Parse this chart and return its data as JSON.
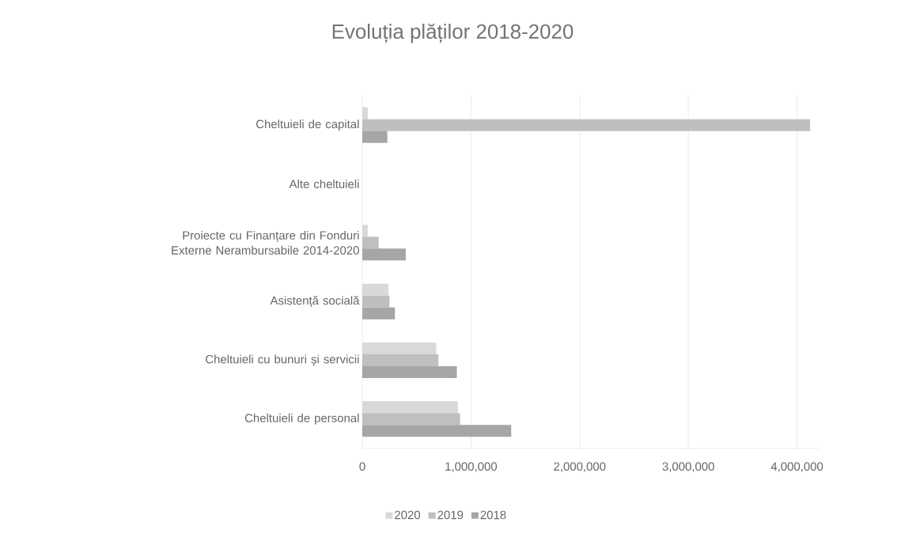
{
  "chart_data": {
    "type": "bar",
    "orientation": "horizontal",
    "title": "Evoluția plăților 2018-2020",
    "categories": [
      "Cheltuieli de capital",
      "Alte cheltuieli",
      "Proiecte cu Finanțare din Fonduri Externe Nerambursabile 2014-2020",
      "Asistență socială",
      "Cheltuieli cu bunuri și servicii",
      "Cheltuieli de personal"
    ],
    "series": [
      {
        "name": "2020",
        "color": "#d9d9d9",
        "values": [
          50000,
          null,
          50000,
          240000,
          680000,
          880000
        ]
      },
      {
        "name": "2019",
        "color": "#bfbfbf",
        "values": [
          4120000,
          null,
          150000,
          250000,
          700000,
          900000
        ]
      },
      {
        "name": "2018",
        "color": "#a6a6a6",
        "values": [
          230000,
          null,
          400000,
          300000,
          870000,
          1370000
        ]
      }
    ],
    "xlim": [
      0,
      4200000
    ],
    "xticks": [
      {
        "value": 0,
        "label": "0"
      },
      {
        "value": 1000000,
        "label": "1,000,000"
      },
      {
        "value": 2000000,
        "label": "2,000,000"
      },
      {
        "value": 3000000,
        "label": "3,000,000"
      },
      {
        "value": 4000000,
        "label": "4,000,000"
      }
    ],
    "grid": "x",
    "legend": "bottom"
  }
}
